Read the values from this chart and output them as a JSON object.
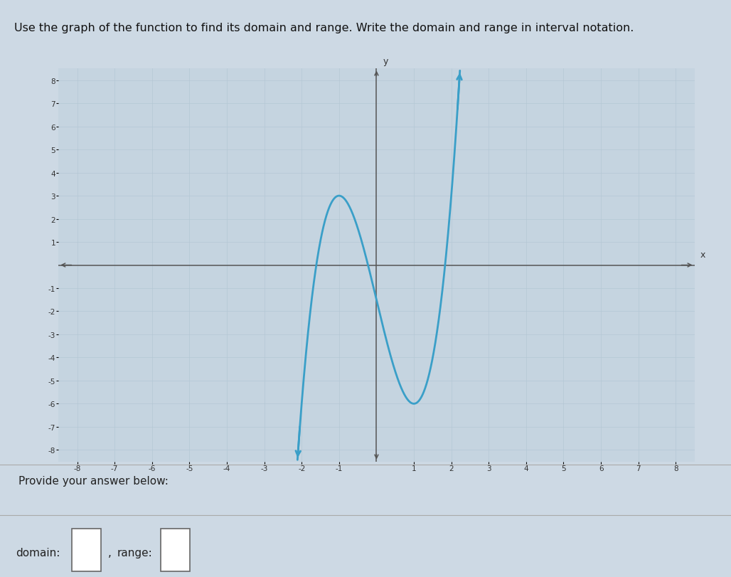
{
  "title": "Use the graph of the function to find its domain and range. Write the domain and range in interval notation.",
  "provide_text": "Provide your answer below:",
  "domain_label": "domain:",
  "range_label": "range:",
  "background_color": "#cdd9e4",
  "graph_bg_color": "#c5d4e0",
  "curve_color": "#3a9fc8",
  "axis_color": "#555555",
  "grid_color": "#b5c8d5",
  "xlim": [
    -8.5,
    8.5
  ],
  "ylim": [
    -8.5,
    8.5
  ],
  "xticks": [
    -8,
    -7,
    -6,
    -5,
    -4,
    -3,
    -2,
    -1,
    1,
    2,
    3,
    4,
    5,
    6,
    7,
    8
  ],
  "yticks": [
    -8,
    -7,
    -6,
    -5,
    -4,
    -3,
    -2,
    -1,
    1,
    2,
    3,
    4,
    5,
    6,
    7,
    8
  ],
  "cubic_a": 2.25,
  "cubic_b": 0.0,
  "cubic_c": -6.75,
  "cubic_d": -1.5,
  "title_fontsize": 11.5,
  "tick_fontsize": 7.5
}
